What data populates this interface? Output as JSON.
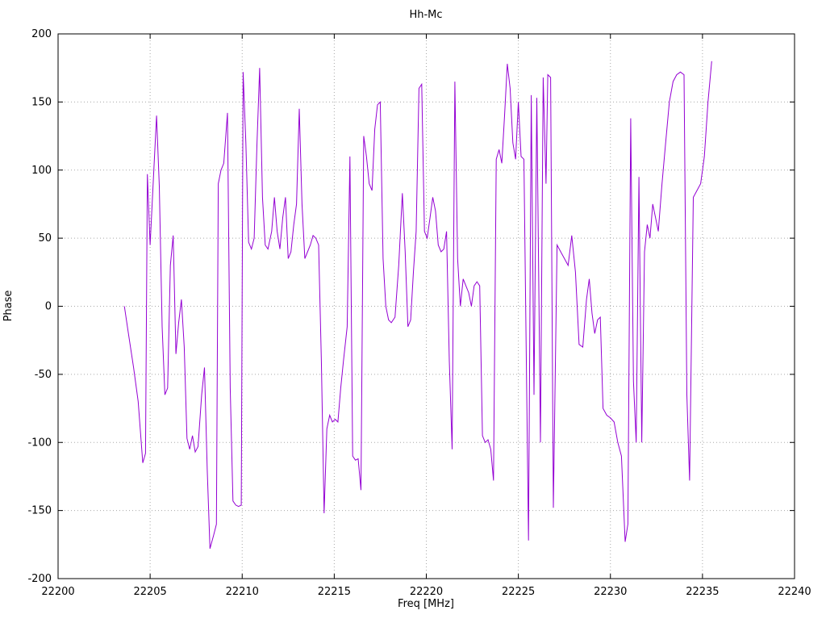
{
  "page": {
    "background": "#ffffff"
  },
  "chart_data": {
    "type": "line",
    "title": "Hh-Mc",
    "xlabel": "Freq [MHz]",
    "ylabel": "Phase",
    "xlim": [
      22200,
      22240
    ],
    "ylim": [
      -200,
      200
    ],
    "xticks": [
      22200,
      22205,
      22210,
      22215,
      22220,
      22225,
      22230,
      22235,
      22240
    ],
    "yticks": [
      -200,
      -150,
      -100,
      -50,
      0,
      50,
      100,
      150,
      200
    ],
    "grid": true,
    "grid_color": "#a8a8a8",
    "border_color": "#000000",
    "line_color": "#9400d3",
    "legend": "none",
    "series": [
      {
        "name": "Hh-Mc phase",
        "points": [
          [
            22203.6,
            0
          ],
          [
            22203.8,
            -18
          ],
          [
            22204.1,
            -45
          ],
          [
            22204.35,
            -70
          ],
          [
            22204.6,
            -115
          ],
          [
            22204.75,
            -108
          ],
          [
            22204.85,
            97
          ],
          [
            22205.0,
            45
          ],
          [
            22205.2,
            100
          ],
          [
            22205.35,
            140
          ],
          [
            22205.5,
            88
          ],
          [
            22205.65,
            -15
          ],
          [
            22205.8,
            -65
          ],
          [
            22205.95,
            -60
          ],
          [
            22206.1,
            30
          ],
          [
            22206.25,
            52
          ],
          [
            22206.4,
            -35
          ],
          [
            22206.55,
            -12
          ],
          [
            22206.7,
            5
          ],
          [
            22206.85,
            -30
          ],
          [
            22207.0,
            -97
          ],
          [
            22207.15,
            -105
          ],
          [
            22207.3,
            -95
          ],
          [
            22207.45,
            -107
          ],
          [
            22207.6,
            -103
          ],
          [
            22207.8,
            -65
          ],
          [
            22207.95,
            -45
          ],
          [
            22208.1,
            -120
          ],
          [
            22208.25,
            -178
          ],
          [
            22208.45,
            -168
          ],
          [
            22208.6,
            -160
          ],
          [
            22208.7,
            90
          ],
          [
            22208.85,
            100
          ],
          [
            22209.0,
            105
          ],
          [
            22209.2,
            142
          ],
          [
            22209.35,
            -60
          ],
          [
            22209.5,
            -143
          ],
          [
            22209.65,
            -146
          ],
          [
            22209.8,
            -147
          ],
          [
            22209.95,
            -146
          ],
          [
            22210.05,
            172
          ],
          [
            22210.2,
            120
          ],
          [
            22210.35,
            47
          ],
          [
            22210.5,
            42
          ],
          [
            22210.65,
            50
          ],
          [
            22210.8,
            118
          ],
          [
            22210.95,
            175
          ],
          [
            22211.1,
            80
          ],
          [
            22211.25,
            45
          ],
          [
            22211.4,
            42
          ],
          [
            22211.6,
            55
          ],
          [
            22211.75,
            80
          ],
          [
            22211.9,
            55
          ],
          [
            22212.05,
            42
          ],
          [
            22212.2,
            65
          ],
          [
            22212.35,
            80
          ],
          [
            22212.5,
            35
          ],
          [
            22212.65,
            40
          ],
          [
            22212.8,
            60
          ],
          [
            22212.95,
            75
          ],
          [
            22213.1,
            145
          ],
          [
            22213.25,
            75
          ],
          [
            22213.4,
            35
          ],
          [
            22213.55,
            40
          ],
          [
            22213.7,
            45
          ],
          [
            22213.85,
            52
          ],
          [
            22214.0,
            50
          ],
          [
            22214.15,
            45
          ],
          [
            22214.3,
            -40
          ],
          [
            22214.45,
            -152
          ],
          [
            22214.6,
            -90
          ],
          [
            22214.75,
            -80
          ],
          [
            22214.9,
            -85
          ],
          [
            22215.05,
            -83
          ],
          [
            22215.2,
            -85
          ],
          [
            22215.35,
            -60
          ],
          [
            22215.5,
            -40
          ],
          [
            22215.7,
            -15
          ],
          [
            22215.85,
            110
          ],
          [
            22216.0,
            -110
          ],
          [
            22216.15,
            -113
          ],
          [
            22216.3,
            -112
          ],
          [
            22216.45,
            -135
          ],
          [
            22216.6,
            125
          ],
          [
            22216.75,
            110
          ],
          [
            22216.9,
            90
          ],
          [
            22217.05,
            85
          ],
          [
            22217.2,
            130
          ],
          [
            22217.35,
            148
          ],
          [
            22217.5,
            150
          ],
          [
            22217.65,
            35
          ],
          [
            22217.8,
            0
          ],
          [
            22217.95,
            -10
          ],
          [
            22218.1,
            -12
          ],
          [
            22218.3,
            -8
          ],
          [
            22218.5,
            30
          ],
          [
            22218.7,
            83
          ],
          [
            22218.85,
            40
          ],
          [
            22219.0,
            -15
          ],
          [
            22219.15,
            -10
          ],
          [
            22219.3,
            25
          ],
          [
            22219.45,
            55
          ],
          [
            22219.6,
            160
          ],
          [
            22219.75,
            163
          ],
          [
            22219.9,
            55
          ],
          [
            22220.05,
            50
          ],
          [
            22220.2,
            65
          ],
          [
            22220.35,
            80
          ],
          [
            22220.5,
            70
          ],
          [
            22220.65,
            45
          ],
          [
            22220.8,
            40
          ],
          [
            22220.95,
            42
          ],
          [
            22221.1,
            55
          ],
          [
            22221.25,
            -40
          ],
          [
            22221.4,
            -105
          ],
          [
            22221.55,
            165
          ],
          [
            22221.7,
            35
          ],
          [
            22221.85,
            0
          ],
          [
            22222.0,
            20
          ],
          [
            22222.15,
            15
          ],
          [
            22222.3,
            10
          ],
          [
            22222.45,
            0
          ],
          [
            22222.6,
            15
          ],
          [
            22222.75,
            18
          ],
          [
            22222.9,
            15
          ],
          [
            22223.05,
            -95
          ],
          [
            22223.2,
            -100
          ],
          [
            22223.35,
            -98
          ],
          [
            22223.5,
            -105
          ],
          [
            22223.65,
            -128
          ],
          [
            22223.8,
            108
          ],
          [
            22223.95,
            115
          ],
          [
            22224.1,
            105
          ],
          [
            22224.25,
            140
          ],
          [
            22224.4,
            178
          ],
          [
            22224.55,
            160
          ],
          [
            22224.7,
            120
          ],
          [
            22224.85,
            108
          ],
          [
            22225.0,
            150
          ],
          [
            22225.15,
            110
          ],
          [
            22225.3,
            108
          ],
          [
            22225.45,
            -60
          ],
          [
            22225.55,
            -172
          ],
          [
            22225.7,
            155
          ],
          [
            22225.85,
            -65
          ],
          [
            22226.0,
            153
          ],
          [
            22226.2,
            -100
          ],
          [
            22226.35,
            168
          ],
          [
            22226.5,
            90
          ],
          [
            22226.6,
            170
          ],
          [
            22226.75,
            168
          ],
          [
            22226.9,
            -148
          ],
          [
            22227.1,
            45
          ],
          [
            22227.3,
            40
          ],
          [
            22227.5,
            35
          ],
          [
            22227.7,
            30
          ],
          [
            22227.9,
            52
          ],
          [
            22228.1,
            25
          ],
          [
            22228.3,
            -28
          ],
          [
            22228.5,
            -30
          ],
          [
            22228.7,
            5
          ],
          [
            22228.85,
            20
          ],
          [
            22229.0,
            -5
          ],
          [
            22229.15,
            -20
          ],
          [
            22229.3,
            -10
          ],
          [
            22229.45,
            -8
          ],
          [
            22229.6,
            -75
          ],
          [
            22229.8,
            -80
          ],
          [
            22230.0,
            -82
          ],
          [
            22230.2,
            -85
          ],
          [
            22230.4,
            -100
          ],
          [
            22230.6,
            -110
          ],
          [
            22230.8,
            -173
          ],
          [
            22230.95,
            -160
          ],
          [
            22231.1,
            138
          ],
          [
            22231.25,
            -55
          ],
          [
            22231.4,
            -100
          ],
          [
            22231.55,
            95
          ],
          [
            22231.7,
            -100
          ],
          [
            22231.85,
            40
          ],
          [
            22232.0,
            60
          ],
          [
            22232.15,
            50
          ],
          [
            22232.3,
            75
          ],
          [
            22232.45,
            65
          ],
          [
            22232.6,
            55
          ],
          [
            22232.8,
            90
          ],
          [
            22233.0,
            120
          ],
          [
            22233.2,
            150
          ],
          [
            22233.4,
            165
          ],
          [
            22233.6,
            170
          ],
          [
            22233.8,
            172
          ],
          [
            22234.0,
            170
          ],
          [
            22234.15,
            -65
          ],
          [
            22234.3,
            -128
          ],
          [
            22234.5,
            80
          ],
          [
            22234.7,
            85
          ],
          [
            22234.9,
            90
          ],
          [
            22235.1,
            110
          ],
          [
            22235.3,
            150
          ],
          [
            22235.5,
            180
          ]
        ]
      }
    ]
  }
}
